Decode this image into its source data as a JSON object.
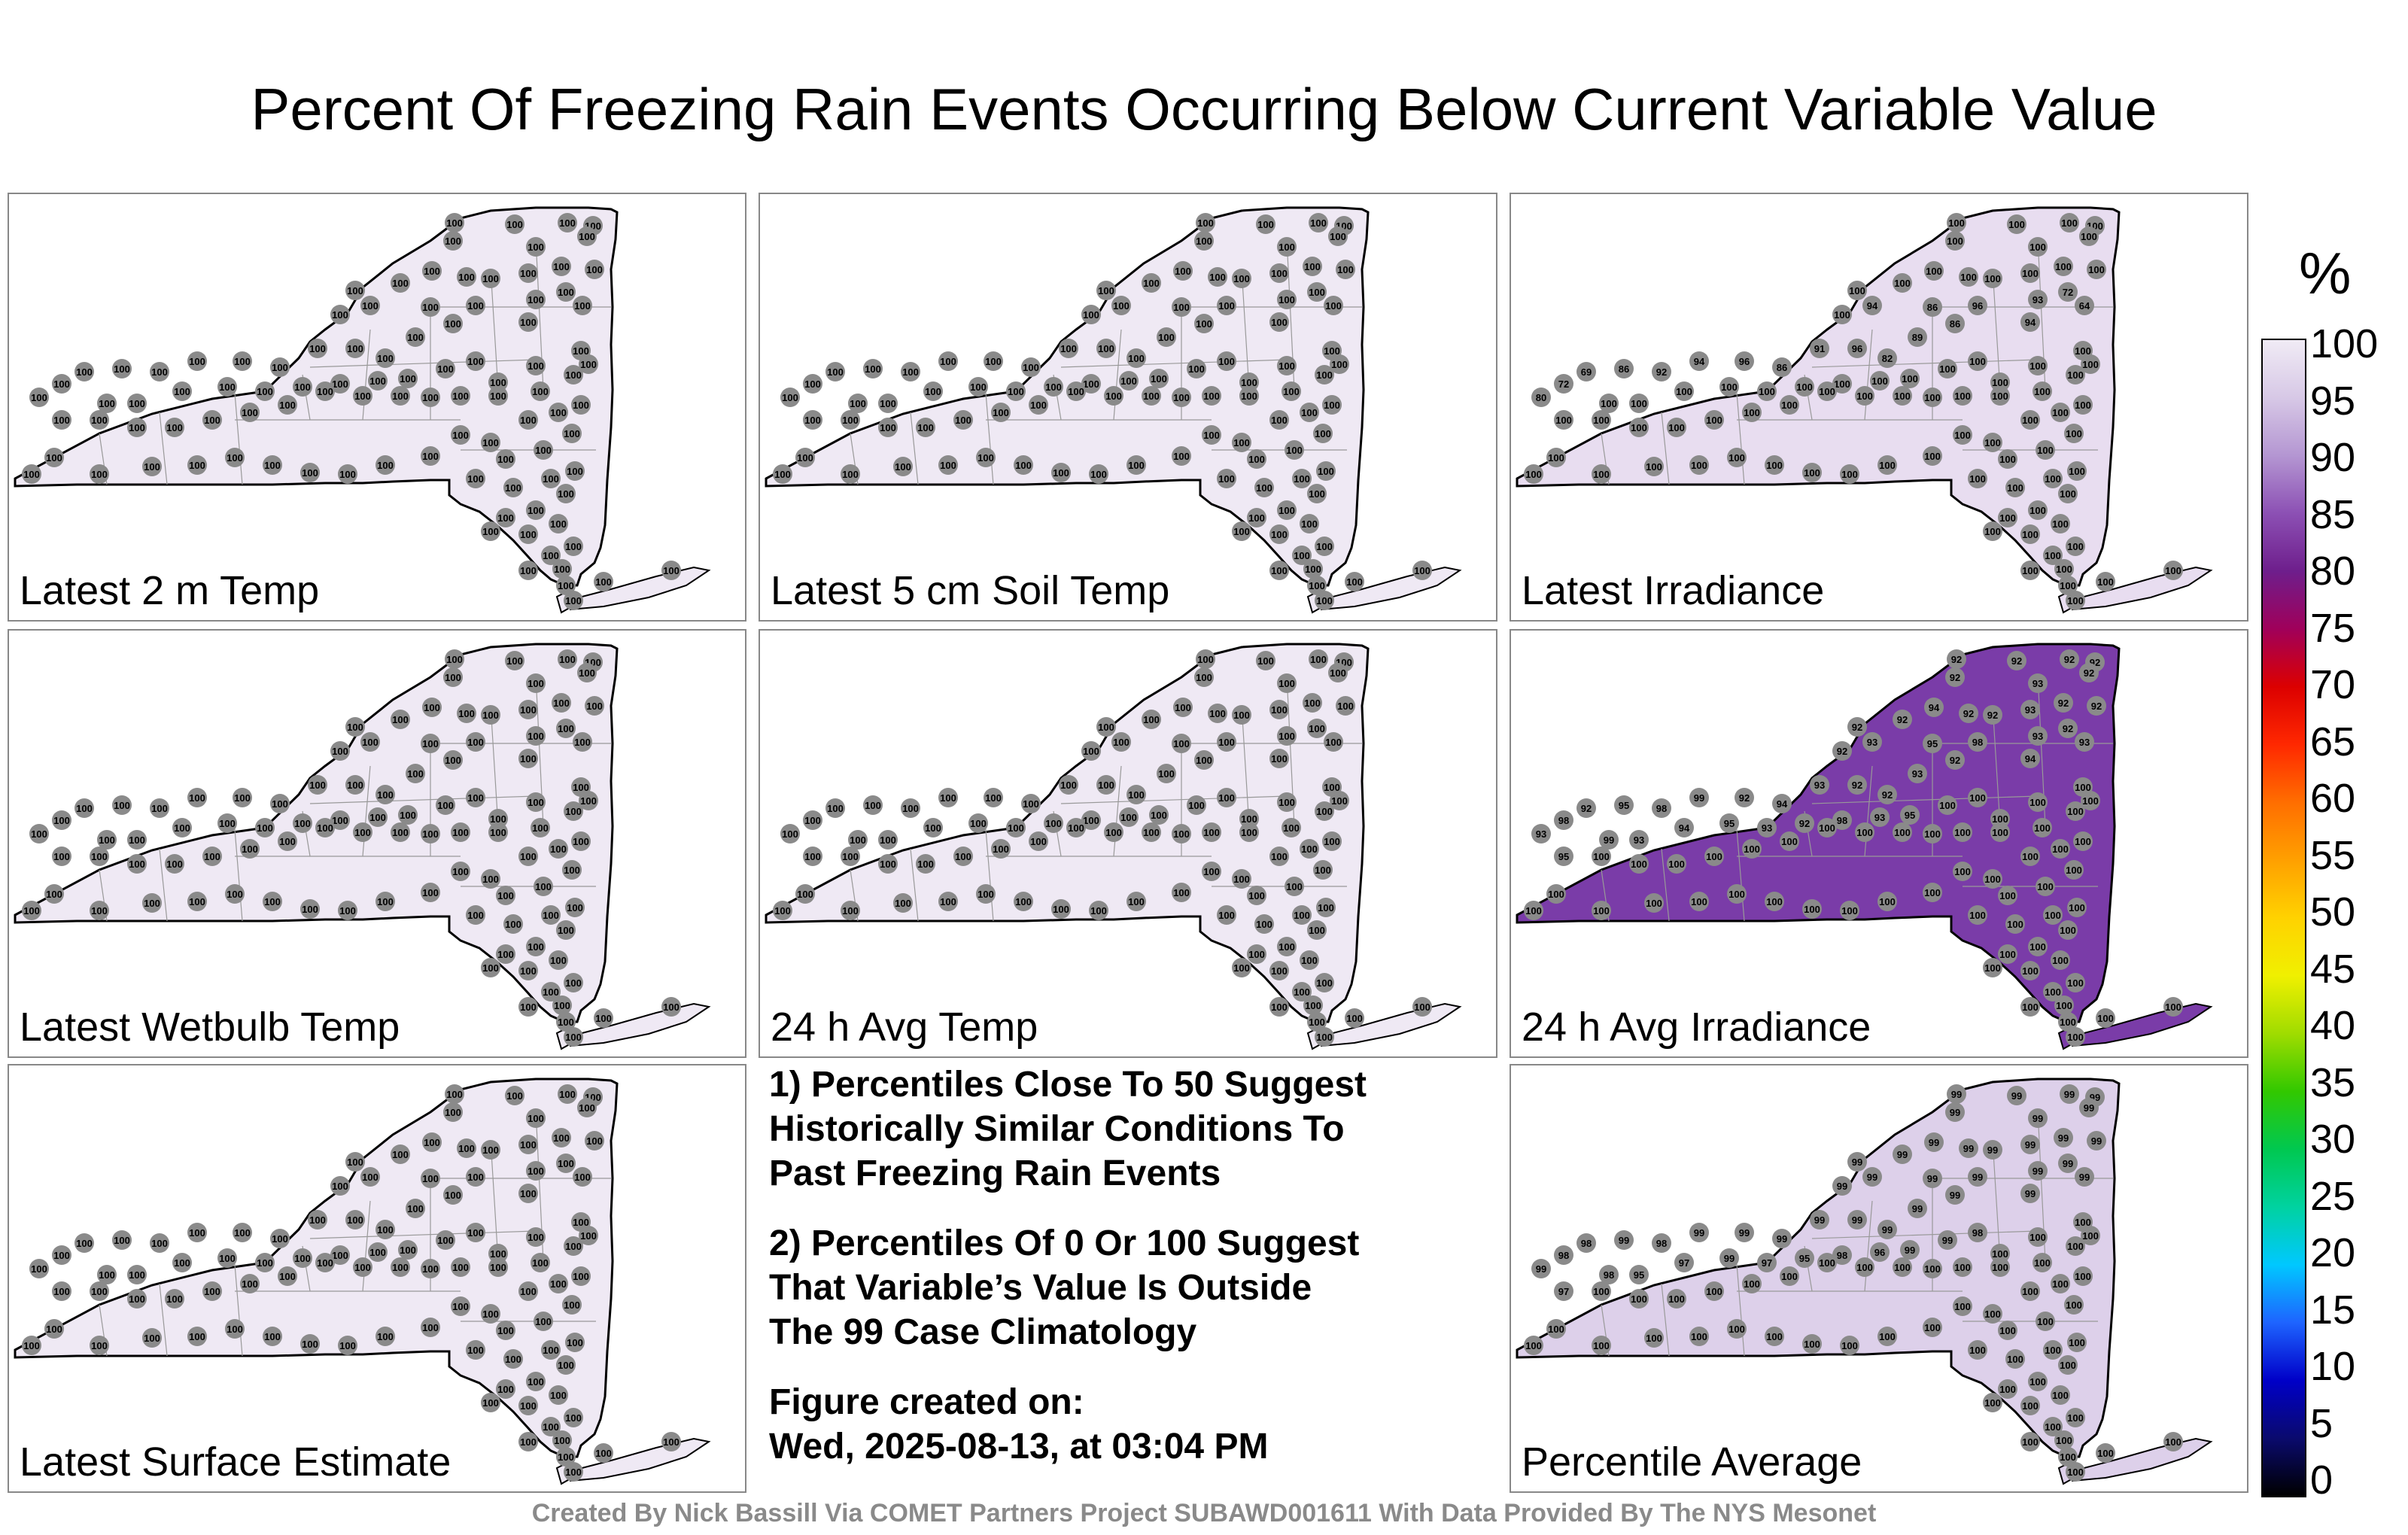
{
  "title": "Percent Of Freezing Rain Events Occurring Below Current Variable Value",
  "panels": [
    {
      "label": "Latest 2 m Temp",
      "fill": "#efe9f4",
      "values": []
    },
    {
      "label": "Latest 5 cm Soil Temp",
      "fill": "#efe9f4",
      "values": []
    },
    {
      "label": "Latest Irradiance",
      "fill": "#e8ddf0",
      "values": [
        "100",
        "100",
        "100",
        "100",
        "100",
        "100",
        "100",
        "100",
        "100",
        "100",
        "100",
        "100",
        "100",
        "100",
        "100",
        "100",
        "94",
        "86",
        "96",
        "93",
        "72",
        "64",
        "94",
        "86",
        "89",
        "82",
        "96",
        "91",
        "86",
        "96",
        "94",
        "92",
        "86",
        "69",
        "72",
        "80",
        "100",
        "100",
        "100",
        "100"
      ]
    },
    {
      "label": "Latest Wetbulb Temp",
      "fill": "#efe9f4",
      "values": []
    },
    {
      "label": "24 h Avg Temp",
      "fill": "#efe9f4",
      "values": []
    },
    {
      "label": "24 h Avg Irradiance",
      "fill": "#7a3ca8",
      "values": [
        "92",
        "92",
        "92",
        "92",
        "92",
        "92",
        "93",
        "92",
        "92",
        "94",
        "92",
        "92",
        "93",
        "92",
        "92",
        "92",
        "93",
        "95",
        "98",
        "93",
        "92",
        "93",
        "94",
        "92",
        "93",
        "92",
        "92",
        "93",
        "94",
        "92",
        "99",
        "98",
        "95",
        "92",
        "98",
        "93",
        "95",
        "99",
        "93",
        "94",
        "95",
        "93",
        "92",
        "98",
        "93",
        "95",
        "100",
        "100",
        "100",
        "100"
      ]
    },
    {
      "label": "Latest Surface Estimate",
      "fill": "#efe9f4",
      "values": []
    },
    {
      "label": "Percentile Average",
      "fill": "#ddd0ea",
      "values": [
        "99",
        "99",
        "99",
        "99",
        "99",
        "99",
        "99",
        "99",
        "99",
        "99",
        "99",
        "99",
        "99",
        "99",
        "99",
        "99",
        "99",
        "99",
        "99",
        "99",
        "99",
        "99",
        "99",
        "99",
        "99",
        "99",
        "99",
        "99",
        "99",
        "99",
        "99",
        "98",
        "99",
        "98",
        "98",
        "99",
        "97",
        "98",
        "95",
        "97",
        "99",
        "97",
        "95",
        "98",
        "96",
        "99",
        "99",
        "98",
        "100",
        "100"
      ]
    }
  ],
  "default_value": "100",
  "notes": [
    "1) Percentiles Close To 50 Suggest Historically Similar Conditions To Past Freezing Rain Events",
    "2) Percentiles Of 0 Or 100 Suggest That Variable’s Value Is Outside The 99 Case Climatology",
    "Figure created on: Wed, 2025-08-13, at 03:04 PM"
  ],
  "note1_lines": [
    "1) Percentiles Close To 50 Suggest",
    "Historically Similar Conditions To",
    "Past Freezing Rain Events"
  ],
  "note2_lines": [
    "2) Percentiles Of 0 Or 100 Suggest",
    "That Variable’s Value Is Outside",
    "The 99 Case Climatology"
  ],
  "note3_lines": [
    "Figure created on:",
    "Wed, 2025-08-13, at 03:04 PM"
  ],
  "footer": "Created By Nick Bassill Via COMET Partners Project SUBAWD001611 With Data Provided By The NYS Mesonet",
  "colorbar": {
    "unit": "%",
    "min": 0,
    "max": 100,
    "ticks": [
      "100",
      "95",
      "90",
      "85",
      "80",
      "75",
      "70",
      "65",
      "60",
      "55",
      "50",
      "45",
      "40",
      "35",
      "30",
      "25",
      "20",
      "15",
      "10",
      "5",
      "0"
    ],
    "colors": [
      "#000000",
      "#0a0a6e",
      "#0000c8",
      "#1e64ff",
      "#00c8ff",
      "#00d2a0",
      "#00c850",
      "#32c800",
      "#a0dc00",
      "#f0f000",
      "#ffd200",
      "#ffa000",
      "#ff6e00",
      "#ff2800",
      "#dc0000",
      "#a0005a",
      "#6e1e8c",
      "#8c50b4",
      "#b496d2",
      "#d7c8e6",
      "#f0ebf5"
    ]
  }
}
